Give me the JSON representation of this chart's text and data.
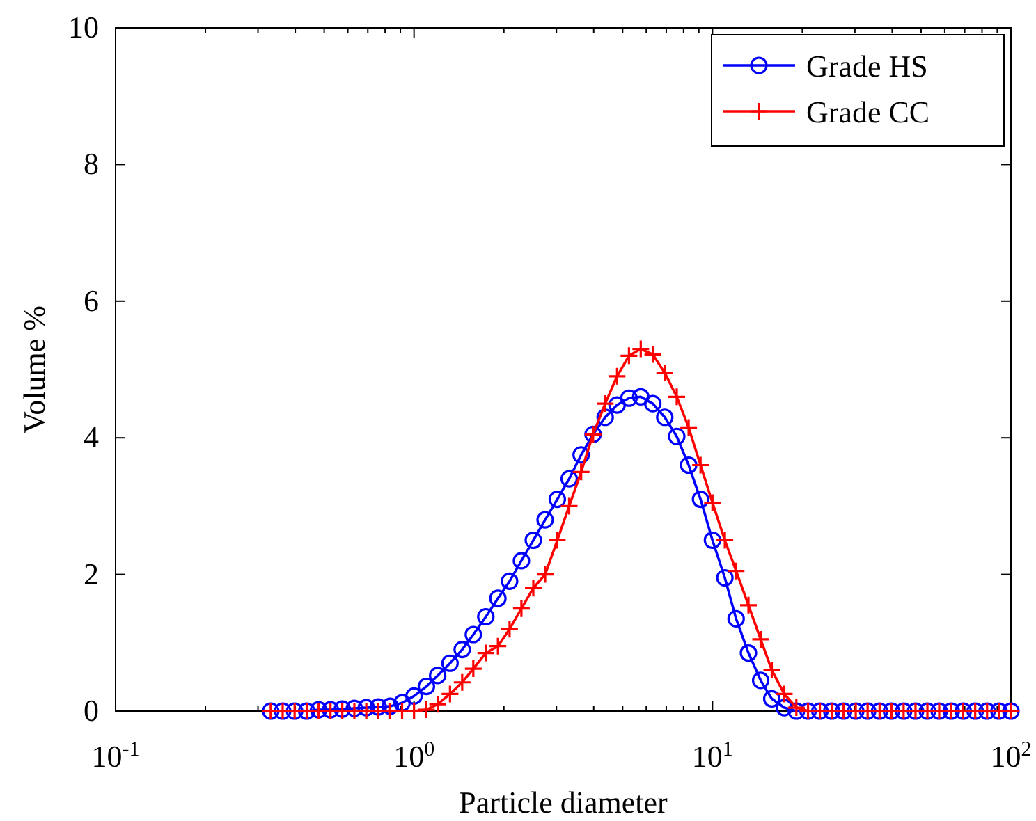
{
  "chart_data": {
    "type": "line",
    "xlabel": "Particle diameter",
    "ylabel": "Volume %",
    "log": "x",
    "grid": false,
    "legend": "top right",
    "line_style": "solid",
    "xlim": [
      0.1,
      100
    ],
    "xticks": [
      {
        "value": 0.1,
        "label": "10$^{-1}$"
      },
      {
        "value": 1,
        "label": "10$^{0}$"
      },
      {
        "value": 10,
        "label": "10$^{1}$"
      },
      {
        "value": 100,
        "label": "10$^{2}$"
      }
    ],
    "ylim": [
      0,
      10
    ],
    "yticks": [
      0,
      2,
      4,
      6,
      8,
      10
    ],
    "x": [
      0.331,
      0.363,
      0.398,
      0.437,
      0.479,
      0.525,
      0.575,
      0.631,
      0.692,
      0.759,
      0.832,
      0.912,
      1,
      1.1,
      1.2,
      1.32,
      1.45,
      1.58,
      1.74,
      1.91,
      2.09,
      2.29,
      2.51,
      2.75,
      3.02,
      3.31,
      3.63,
      3.98,
      4.37,
      4.79,
      5.25,
      5.75,
      6.31,
      6.92,
      7.59,
      8.32,
      9.12,
      10,
      11,
      12,
      13.2,
      14.5,
      15.8,
      17.4,
      19.1,
      20.9,
      22.9,
      25.1,
      27.5,
      30.2,
      33.1,
      36.3,
      39.8,
      43.7,
      47.9,
      52.5,
      57.5,
      63.1,
      69.2,
      75.9,
      83.2,
      91.2,
      100
    ],
    "series": [
      {
        "name": "Grade HS",
        "color": "#0000ff",
        "marker": "circle",
        "values": [
          0,
          0,
          0,
          0,
          0.02,
          0.02,
          0.03,
          0.04,
          0.05,
          0.06,
          0.07,
          0.12,
          0.22,
          0.36,
          0.52,
          0.7,
          0.9,
          1.12,
          1.38,
          1.65,
          1.9,
          2.2,
          2.5,
          2.8,
          3.1,
          3.4,
          3.75,
          4.05,
          4.3,
          4.48,
          4.58,
          4.6,
          4.5,
          4.3,
          4.02,
          3.6,
          3.1,
          2.5,
          1.95,
          1.35,
          0.85,
          0.45,
          0.18,
          0.05,
          0,
          0,
          0,
          0,
          0,
          0,
          0,
          0,
          0,
          0,
          0,
          0,
          0,
          0,
          0,
          0,
          0,
          0,
          0
        ]
      },
      {
        "name": "Grade CC",
        "color": "#ff0000",
        "marker": "cross",
        "values": [
          0,
          0,
          0,
          0,
          0,
          0,
          0,
          0,
          0,
          0,
          0,
          0,
          0,
          0.02,
          0.1,
          0.25,
          0.42,
          0.62,
          0.85,
          0.95,
          1.2,
          1.5,
          1.8,
          2,
          2.5,
          3,
          3.5,
          4.05,
          4.5,
          4.9,
          5.2,
          5.3,
          5.22,
          4.95,
          4.6,
          4.15,
          3.6,
          3.05,
          2.5,
          2.05,
          1.55,
          1.05,
          0.6,
          0.25,
          0.05,
          0,
          0,
          0,
          0,
          0,
          0,
          0,
          0,
          0,
          0,
          0,
          0,
          0,
          0,
          0,
          0,
          0,
          0
        ]
      }
    ]
  }
}
